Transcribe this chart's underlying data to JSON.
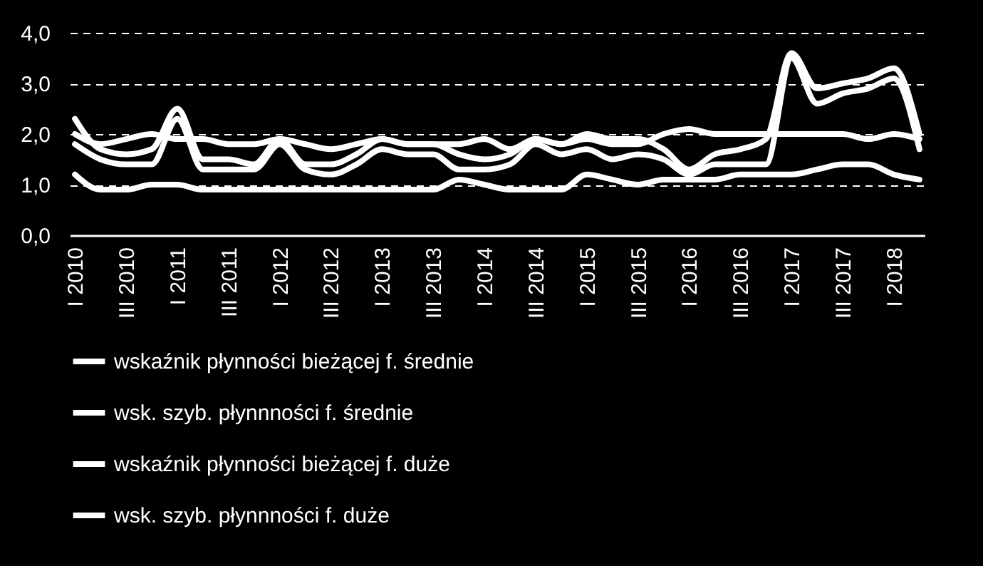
{
  "chart_data": {
    "type": "line",
    "categories": [
      "I 2010",
      null,
      "III 2010",
      null,
      "I 2011",
      null,
      "III 2011",
      null,
      "I 2012",
      null,
      "III 2012",
      null,
      "I 2013",
      null,
      "III 2013",
      null,
      "I 2014",
      null,
      "III 2014",
      null,
      "I 2015",
      null,
      "III 2015",
      null,
      "I 2016",
      null,
      "III 2016",
      null,
      "I 2017",
      null,
      "III 2017",
      null,
      "I 2018",
      null
    ],
    "series": [
      {
        "name": "wskaźnik płynności bieżącej f. średnie",
        "color": "#ffffff",
        "values": [
          2.3,
          1.7,
          1.6,
          1.7,
          2.5,
          1.5,
          1.5,
          1.4,
          1.9,
          1.4,
          1.4,
          1.6,
          1.9,
          1.8,
          1.8,
          1.6,
          1.5,
          1.6,
          1.9,
          1.8,
          2.0,
          1.9,
          1.9,
          1.7,
          1.3,
          1.6,
          1.7,
          1.9,
          3.6,
          2.9,
          3.0,
          3.1,
          3.3,
          2.0
        ]
      },
      {
        "name": "wsk. szyb. płynnności f. średnie",
        "color": "#ffffff",
        "values": [
          1.8,
          1.5,
          1.4,
          1.4,
          2.3,
          1.3,
          1.3,
          1.3,
          1.8,
          1.3,
          1.2,
          1.4,
          1.7,
          1.6,
          1.6,
          1.3,
          1.3,
          1.4,
          1.8,
          1.6,
          1.7,
          1.5,
          1.6,
          1.5,
          1.2,
          1.4,
          1.4,
          1.4,
          3.5,
          2.6,
          2.8,
          2.9,
          3.1,
          1.7
        ]
      },
      {
        "name": "wskaźnik płynności bieżącej f. duże",
        "color": "#ffffff",
        "values": [
          2.0,
          1.8,
          1.9,
          2.0,
          1.9,
          1.9,
          1.8,
          1.8,
          1.9,
          1.8,
          1.7,
          1.8,
          1.9,
          1.8,
          1.8,
          1.8,
          1.9,
          1.7,
          1.9,
          1.8,
          1.9,
          1.8,
          1.8,
          2.0,
          2.1,
          2.0,
          2.0,
          2.0,
          2.0,
          2.0,
          2.0,
          1.9,
          2.0,
          1.9
        ]
      },
      {
        "name": "wsk. szyb. płynnności f. duże",
        "color": "#ffffff",
        "values": [
          1.2,
          0.9,
          0.9,
          1.0,
          1.0,
          0.9,
          0.9,
          0.9,
          0.9,
          0.9,
          0.9,
          0.9,
          0.9,
          0.9,
          0.9,
          1.1,
          1.0,
          0.9,
          0.9,
          0.9,
          1.2,
          1.1,
          1.0,
          1.1,
          1.1,
          1.1,
          1.2,
          1.2,
          1.2,
          1.3,
          1.4,
          1.4,
          1.2,
          1.1
        ]
      }
    ],
    "ylim": [
      0,
      4
    ],
    "yticks": [
      {
        "value": 0,
        "label": "0,0"
      },
      {
        "value": 1,
        "label": "1,0"
      },
      {
        "value": 2,
        "label": "2,0"
      },
      {
        "value": 3,
        "label": "3,0"
      },
      {
        "value": 4,
        "label": "4,0"
      }
    ],
    "grid": "y",
    "line_style": "solid",
    "marker": "none",
    "legend": "bottom"
  }
}
